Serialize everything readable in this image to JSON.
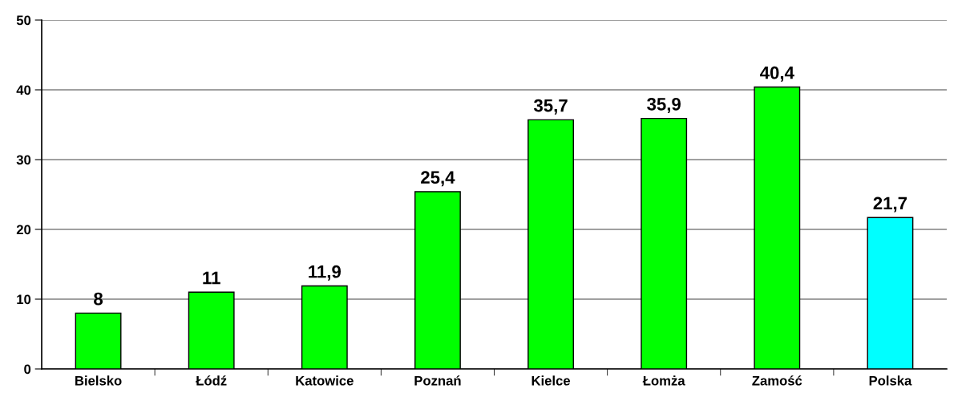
{
  "chart_data": {
    "type": "bar",
    "categories": [
      "Bielsko",
      "Łódź",
      "Katowice",
      "Poznań",
      "Kielce",
      "Łomża",
      "Zamość",
      "Polska"
    ],
    "values": [
      8,
      11,
      11.9,
      25.4,
      35.7,
      35.9,
      40.4,
      21.7
    ],
    "colors": [
      "#00ff00",
      "#00ff00",
      "#00ff00",
      "#00ff00",
      "#00ff00",
      "#00ff00",
      "#00ff00",
      "#00ffff"
    ],
    "value_labels": [
      "8",
      "11",
      "11,9",
      "25,4",
      "35,7",
      "35,9",
      "40,4",
      "21,7"
    ],
    "ylim": [
      0,
      50
    ],
    "yticks": [
      0,
      10,
      20,
      30,
      40,
      50
    ],
    "grid": "y"
  }
}
